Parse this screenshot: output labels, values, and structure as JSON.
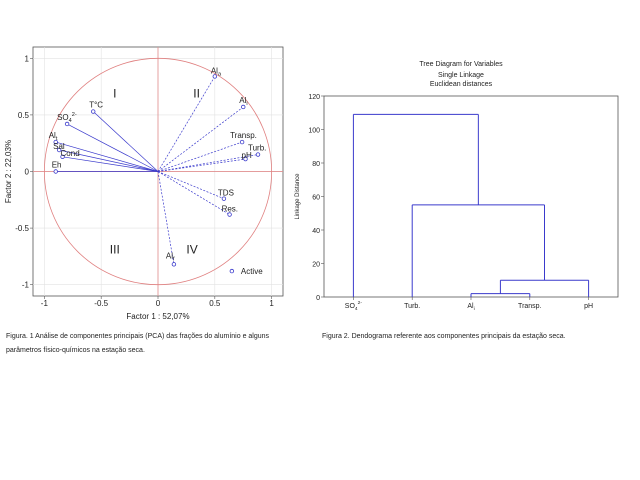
{
  "colors": {
    "vector": "#3a3acc",
    "circle": "#e08080",
    "axis": "#444444"
  },
  "chart_data": [
    {
      "type": "scatter",
      "subtype": "pca-correlation-circle",
      "xlabel": "Factor 1 : 52,07%",
      "ylabel": "Factor 2 : 22,03%",
      "xlim": [
        -1.1,
        1.1
      ],
      "ylim": [
        -1.1,
        1.1
      ],
      "xticks": [
        "-1",
        "-0.5",
        "0",
        "0.5",
        "1"
      ],
      "yticks": [
        "1",
        "0.5",
        "0",
        "-0.5",
        "-1"
      ],
      "grid": true,
      "legend": "Active",
      "legend_position": "bottom-right",
      "quadrants": [
        "I",
        "II",
        "III",
        "IV"
      ],
      "points": [
        {
          "label": "Al",
          "sub": "a",
          "x": 0.5,
          "y": 0.84
        },
        {
          "label": "Al",
          "sub": "i",
          "x": 0.75,
          "y": 0.57
        },
        {
          "label": "T°C",
          "sub": "",
          "x": -0.57,
          "y": 0.53
        },
        {
          "label": "SO",
          "sub": "4",
          "sup": "2-",
          "x": -0.8,
          "y": 0.42
        },
        {
          "label": "Al",
          "sub": "t",
          "x": -0.9,
          "y": 0.26
        },
        {
          "label": "Sal",
          "sub": "",
          "x": -0.87,
          "y": 0.19
        },
        {
          "label": "Cond",
          "sub": "",
          "x": -0.84,
          "y": 0.13
        },
        {
          "label": "Eh",
          "sub": "",
          "x": -0.9,
          "y": 0.0
        },
        {
          "label": "Transp.",
          "sub": "",
          "x": 0.74,
          "y": 0.26
        },
        {
          "label": "Turb.",
          "sub": "",
          "x": 0.88,
          "y": 0.15
        },
        {
          "label": "pH",
          "sub": "",
          "x": 0.77,
          "y": 0.11
        },
        {
          "label": "TDS",
          "sub": "",
          "x": 0.58,
          "y": -0.24
        },
        {
          "label": "Res.",
          "sub": "",
          "x": 0.63,
          "y": -0.38
        },
        {
          "label": "Al",
          "sub": "f",
          "x": 0.14,
          "y": -0.82
        }
      ]
    },
    {
      "type": "dendrogram",
      "title": "Tree Diagram for Variables",
      "subtitle1": "Single Linkage",
      "subtitle2": "Euclidean distances",
      "ylabel": "Linkage Distance",
      "ylim": [
        0,
        120
      ],
      "yticks": [
        "0",
        "20",
        "40",
        "60",
        "80",
        "100",
        "120"
      ],
      "leaves": [
        {
          "label": "SO",
          "sub": "4",
          "sup": "2-"
        },
        {
          "label": "Turb.",
          "sub": ""
        },
        {
          "label": "Al",
          "sub": "i"
        },
        {
          "label": "Transp.",
          "sub": ""
        },
        {
          "label": "pH",
          "sub": ""
        }
      ],
      "merges": [
        {
          "left": 2,
          "right": 3,
          "height": 2
        },
        {
          "left": "m0",
          "right": 4,
          "height": 10
        },
        {
          "left": 1,
          "right": "m1",
          "height": 55
        },
        {
          "left": 0,
          "right": "m2",
          "height": 109
        }
      ]
    }
  ],
  "captions": {
    "figure1": "Figura. 1 Análise de componentes principais (PCA) das frações do alumínio e alguns parâmetros físico-químicos na estação seca.",
    "figure2": "Figura 2. Dendograma referente aos componentes principais da estação seca."
  }
}
